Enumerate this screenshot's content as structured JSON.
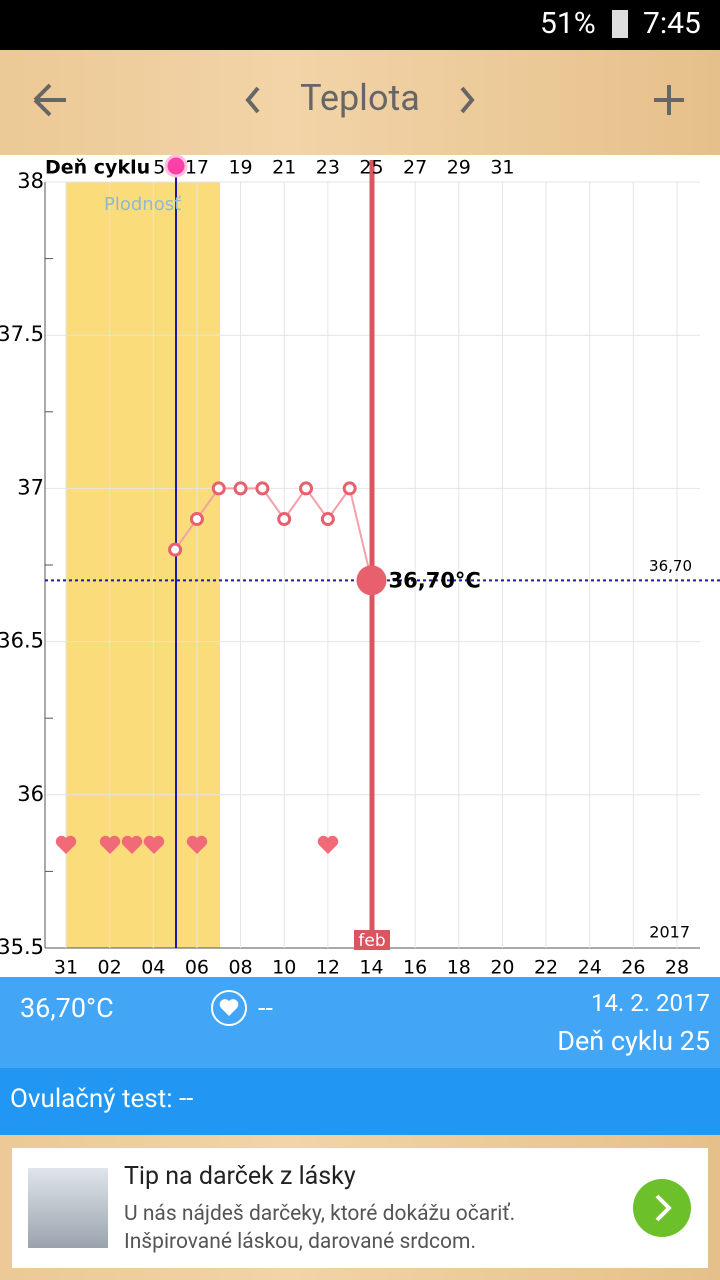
{
  "status_bar": {
    "battery": "51%",
    "time": "7:45"
  },
  "toolbar": {
    "title": "Teplota"
  },
  "chart_data": {
    "type": "line",
    "cycle_label": "Deň cyklu",
    "fertile_label": "Plodnosť",
    "year_label": "2017",
    "month_label": "feb",
    "categories": [
      "31",
      null,
      "02",
      null,
      "04",
      null,
      "06",
      null,
      "08",
      null,
      "10",
      null,
      "12",
      null,
      "14",
      null,
      "16",
      null,
      "18",
      null,
      "20",
      null,
      "22",
      null,
      "24",
      null,
      "26",
      null,
      "28"
    ],
    "cycle_days": [
      null,
      null,
      null,
      null,
      "5",
      null,
      "17",
      null,
      "19",
      null,
      "21",
      null,
      "23",
      null,
      "25",
      null,
      "27",
      null,
      "29",
      null,
      "31",
      null,
      null,
      null,
      null,
      null,
      null,
      null,
      null
    ],
    "series": [
      {
        "color": "#e8606e",
        "values": [
          null,
          null,
          null,
          null,
          null,
          36.8,
          36.9,
          37,
          37,
          37,
          36.9,
          37,
          36.9,
          37,
          36.7,
          null,
          null,
          null,
          null,
          null,
          null,
          null,
          null,
          null,
          null,
          null,
          null,
          null,
          null
        ],
        "value_labels": [
          null,
          null,
          null,
          null,
          null,
          null,
          null,
          null,
          null,
          null,
          null,
          null,
          null,
          null,
          "36,70°C",
          null,
          null,
          null,
          null,
          null,
          null,
          null,
          null,
          null,
          null,
          null,
          null,
          null,
          null
        ]
      }
    ],
    "ylim": [
      35.5,
      38
    ],
    "yticks": [
      35.5,
      36,
      36.5,
      37,
      37.5,
      38
    ],
    "reference_line": {
      "value": 36.7,
      "label": "36,70"
    },
    "grid": true
  },
  "info": {
    "temperature": "36,70°C",
    "intercourse": "--",
    "date": "14. 2. 2017",
    "cycle_day": "Deň cyklu 25",
    "ovulation_test": "Ovulačný test: --"
  },
  "ad": {
    "title": "Tip na darček z lásky",
    "line1": "U nás nájdeš darčeky, ktoré dokážu očariť.",
    "line2": "Inšpirované láskou, darované srdcom."
  }
}
